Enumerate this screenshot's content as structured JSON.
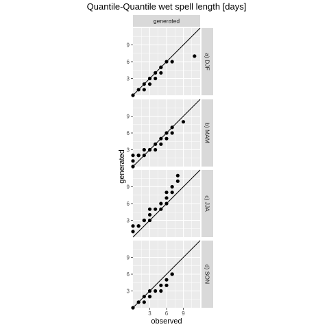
{
  "chart_data": {
    "type": "scatter",
    "title": "Quantile-Quantile wet spell length [days]",
    "xlabel": "observed",
    "ylabel": "generated",
    "column_strip": "generated",
    "xlim": [
      0,
      12
    ],
    "ylim": [
      0,
      12
    ],
    "x_ticks": [
      3,
      6,
      9
    ],
    "y_ticks": [
      3,
      6,
      9
    ],
    "reference_line": "y = x",
    "colors": {
      "panel_bg": "#ebebeb",
      "grid": "#ffffff",
      "strip_bg": "#d9d9d9",
      "points": "#000000",
      "line": "#000000"
    },
    "panels": [
      {
        "label": "a) DJF",
        "points": [
          [
            0,
            0
          ],
          [
            1,
            1
          ],
          [
            2,
            1
          ],
          [
            2,
            2
          ],
          [
            3,
            2
          ],
          [
            3,
            3
          ],
          [
            3,
            3
          ],
          [
            4,
            3
          ],
          [
            4,
            4
          ],
          [
            5,
            4
          ],
          [
            5,
            5
          ],
          [
            5,
            5
          ],
          [
            6,
            6
          ],
          [
            7,
            6
          ],
          [
            11,
            7
          ]
        ]
      },
      {
        "label": "b) MAM",
        "points": [
          [
            0,
            0
          ],
          [
            0,
            1
          ],
          [
            0,
            2
          ],
          [
            1,
            2
          ],
          [
            1,
            2
          ],
          [
            2,
            2
          ],
          [
            2,
            3
          ],
          [
            3,
            3
          ],
          [
            3,
            3
          ],
          [
            4,
            3
          ],
          [
            4,
            4
          ],
          [
            5,
            4
          ],
          [
            5,
            5
          ],
          [
            6,
            5
          ],
          [
            6,
            6
          ],
          [
            7,
            6
          ],
          [
            7,
            7
          ],
          [
            9,
            8
          ]
        ]
      },
      {
        "label": "c) JJA",
        "points": [
          [
            0,
            1
          ],
          [
            0,
            2
          ],
          [
            1,
            2
          ],
          [
            1,
            2
          ],
          [
            2,
            3
          ],
          [
            2,
            3
          ],
          [
            3,
            3
          ],
          [
            3,
            4
          ],
          [
            3,
            5
          ],
          [
            4,
            5
          ],
          [
            5,
            5
          ],
          [
            5,
            6
          ],
          [
            6,
            6
          ],
          [
            6,
            7
          ],
          [
            6,
            8
          ],
          [
            7,
            8
          ],
          [
            7,
            9
          ],
          [
            8,
            10
          ],
          [
            8,
            11
          ]
        ]
      },
      {
        "label": "d) SON",
        "points": [
          [
            0,
            0
          ],
          [
            1,
            1
          ],
          [
            2,
            1
          ],
          [
            2,
            2
          ],
          [
            3,
            2
          ],
          [
            3,
            2
          ],
          [
            3,
            3
          ],
          [
            4,
            3
          ],
          [
            5,
            3
          ],
          [
            5,
            4
          ],
          [
            6,
            4
          ],
          [
            6,
            5
          ],
          [
            7,
            6
          ],
          [
            7,
            6
          ]
        ]
      }
    ]
  }
}
